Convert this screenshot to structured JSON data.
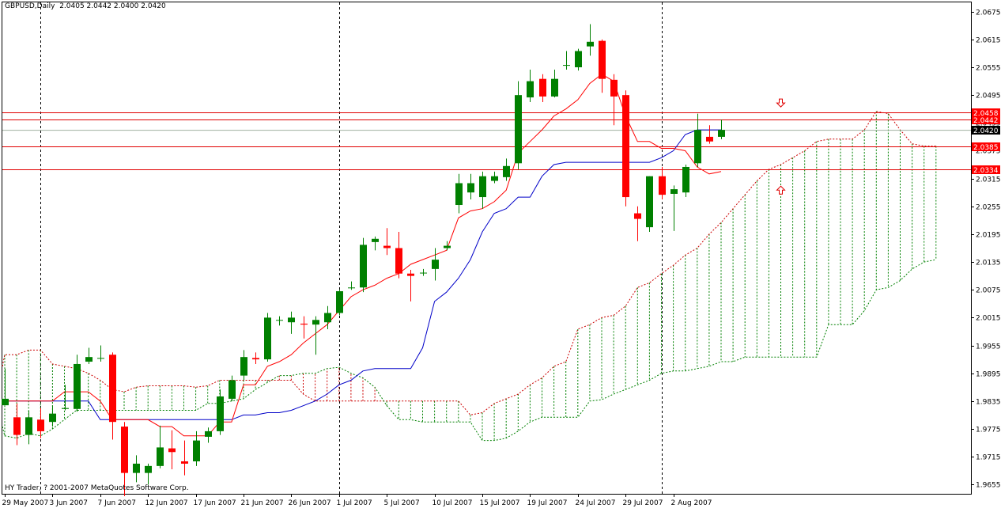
{
  "header": {
    "symbol": "GBPUSD,Daily",
    "ohlc": "2.0405 2.0442 2.0400 2.0420"
  },
  "copyright": "HY Trader, ? 2001-2007 MetaQuotes Software Corp.",
  "chart_data": {
    "type": "candlestick",
    "price_axis": {
      "ylim": [
        1.9635,
        2.0695
      ],
      "ticks": [
        "2.0675",
        "2.0615",
        "2.0555",
        "2.0495",
        "2.0435",
        "2.0375",
        "2.0315",
        "2.0255",
        "2.0195",
        "2.0135",
        "2.0075",
        "2.0015",
        "1.9955",
        "1.9895",
        "1.9835",
        "1.9775",
        "1.9715",
        "1.9655"
      ],
      "side": "right"
    },
    "date_axis_labels": [
      {
        "i": 0,
        "label": "29 May 2007"
      },
      {
        "i": 4,
        "label": "3 Jun 2007"
      },
      {
        "i": 8,
        "label": "7 Jun 2007"
      },
      {
        "i": 12,
        "label": "12 Jun 2007"
      },
      {
        "i": 16,
        "label": "17 Jun 2007"
      },
      {
        "i": 20,
        "label": "21 Jun 2007"
      },
      {
        "i": 24,
        "label": "26 Jun 2007"
      },
      {
        "i": 28,
        "label": "1 Jul 2007"
      },
      {
        "i": 32,
        "label": "5 Jul 2007"
      },
      {
        "i": 36,
        "label": "10 Jul 2007"
      },
      {
        "i": 40,
        "label": "15 Jul 2007"
      },
      {
        "i": 44,
        "label": "19 Jul 2007"
      },
      {
        "i": 48,
        "label": "24 Jul 2007"
      },
      {
        "i": 52,
        "label": "29 Jul 2007"
      },
      {
        "i": 56,
        "label": "2 Aug 2007"
      }
    ],
    "period_separators": [
      3,
      28,
      55
    ],
    "colors": {
      "bull": "#008000",
      "bear": "#ff0000",
      "tenkan": "#ff0000",
      "kijun": "#0000c8",
      "cloud_bull": "#008000",
      "cloud_bear": "#cc0000",
      "hline": "#e00000",
      "grid_sep": "#000000"
    },
    "candles": [
      {
        "o": 1.9826,
        "h": 1.9905,
        "l": 1.983,
        "c": 1.984
      },
      {
        "o": 1.98,
        "h": 1.983,
        "l": 1.974,
        "c": 1.9762
      },
      {
        "o": 1.9762,
        "h": 1.9815,
        "l": 1.9742,
        "c": 1.98
      },
      {
        "o": 1.9795,
        "h": 1.982,
        "l": 1.9755,
        "c": 1.977
      },
      {
        "o": 1.979,
        "h": 1.9825,
        "l": 1.978,
        "c": 1.9808
      },
      {
        "o": 1.9818,
        "h": 1.987,
        "l": 1.9815,
        "c": 1.982
      },
      {
        "o": 1.9818,
        "h": 1.9935,
        "l": 1.9812,
        "c": 1.9915
      },
      {
        "o": 1.992,
        "h": 1.995,
        "l": 1.9915,
        "c": 1.993
      },
      {
        "o": 1.9928,
        "h": 1.9955,
        "l": 1.992,
        "c": 1.9928
      },
      {
        "o": 1.9935,
        "h": 1.994,
        "l": 1.9752,
        "c": 1.979
      },
      {
        "o": 1.978,
        "h": 1.979,
        "l": 1.963,
        "c": 1.968
      },
      {
        "o": 1.968,
        "h": 1.9718,
        "l": 1.966,
        "c": 1.97
      },
      {
        "o": 1.968,
        "h": 1.97,
        "l": 1.9655,
        "c": 1.9695
      },
      {
        "o": 1.9695,
        "h": 1.9782,
        "l": 1.969,
        "c": 1.9735
      },
      {
        "o": 1.9733,
        "h": 1.9772,
        "l": 1.9688,
        "c": 1.9725
      },
      {
        "o": 1.9705,
        "h": 1.975,
        "l": 1.9675,
        "c": 1.97
      },
      {
        "o": 1.9705,
        "h": 1.977,
        "l": 1.9695,
        "c": 1.975
      },
      {
        "o": 1.9758,
        "h": 1.9778,
        "l": 1.9745,
        "c": 1.977
      },
      {
        "o": 1.977,
        "h": 1.986,
        "l": 1.9762,
        "c": 1.9845
      },
      {
        "o": 1.984,
        "h": 1.989,
        "l": 1.9835,
        "c": 1.988
      },
      {
        "o": 1.989,
        "h": 1.9945,
        "l": 1.988,
        "c": 1.993
      },
      {
        "o": 1.9928,
        "h": 1.994,
        "l": 1.9915,
        "c": 1.9925
      },
      {
        "o": 1.9925,
        "h": 2.0025,
        "l": 1.992,
        "c": 2.0015
      },
      {
        "o": 2.001,
        "h": 2.0018,
        "l": 1.9998,
        "c": 2.001
      },
      {
        "o": 2.0005,
        "h": 2.0028,
        "l": 1.998,
        "c": 2.0015
      },
      {
        "o": 2.0002,
        "h": 2.0018,
        "l": 1.997,
        "c": 2.0
      },
      {
        "o": 2.0,
        "h": 2.0018,
        "l": 1.9935,
        "c": 2.001
      },
      {
        "o": 2.0005,
        "h": 2.004,
        "l": 1.999,
        "c": 2.0025
      },
      {
        "o": 2.0025,
        "h": 2.0075,
        "l": 2.002,
        "c": 2.0072
      },
      {
        "o": 2.008,
        "h": 2.0093,
        "l": 2.0075,
        "c": 2.008
      },
      {
        "o": 2.008,
        "h": 2.0187,
        "l": 2.007,
        "c": 2.0172
      },
      {
        "o": 2.0178,
        "h": 2.019,
        "l": 2.016,
        "c": 2.0185
      },
      {
        "o": 2.017,
        "h": 2.0208,
        "l": 2.015,
        "c": 2.0165
      },
      {
        "o": 2.0165,
        "h": 2.02,
        "l": 2.01,
        "c": 2.011
      },
      {
        "o": 2.011,
        "h": 2.0118,
        "l": 2.005,
        "c": 2.0105
      },
      {
        "o": 2.0112,
        "h": 2.012,
        "l": 2.0105,
        "c": 2.0112
      },
      {
        "o": 2.012,
        "h": 2.0165,
        "l": 2.0095,
        "c": 2.014
      },
      {
        "o": 2.0165,
        "h": 2.018,
        "l": 2.016,
        "c": 2.017
      },
      {
        "o": 2.0258,
        "h": 2.0325,
        "l": 2.024,
        "c": 2.0305
      },
      {
        "o": 2.0285,
        "h": 2.0325,
        "l": 2.027,
        "c": 2.0305
      },
      {
        "o": 2.0275,
        "h": 2.033,
        "l": 2.025,
        "c": 2.032
      },
      {
        "o": 2.031,
        "h": 2.033,
        "l": 2.0305,
        "c": 2.032
      },
      {
        "o": 2.0318,
        "h": 2.0358,
        "l": 2.031,
        "c": 2.0342
      },
      {
        "o": 2.0348,
        "h": 2.0525,
        "l": 2.0335,
        "c": 2.0495
      },
      {
        "o": 2.049,
        "h": 2.055,
        "l": 2.048,
        "c": 2.0525
      },
      {
        "o": 2.053,
        "h": 2.054,
        "l": 2.048,
        "c": 2.0492
      },
      {
        "o": 2.0492,
        "h": 2.055,
        "l": 2.049,
        "c": 2.053
      },
      {
        "o": 2.056,
        "h": 2.059,
        "l": 2.055,
        "c": 2.056
      },
      {
        "o": 2.0555,
        "h": 2.0595,
        "l": 2.0548,
        "c": 2.059
      },
      {
        "o": 2.06,
        "h": 2.0648,
        "l": 2.058,
        "c": 2.061
      },
      {
        "o": 2.0612,
        "h": 2.0615,
        "l": 2.05,
        "c": 2.053
      },
      {
        "o": 2.0528,
        "h": 2.054,
        "l": 2.043,
        "c": 2.0492
      },
      {
        "o": 2.0495,
        "h": 2.0505,
        "l": 2.0255,
        "c": 2.0275
      },
      {
        "o": 2.024,
        "h": 2.0255,
        "l": 2.018,
        "c": 2.0228
      },
      {
        "o": 2.021,
        "h": 2.032,
        "l": 2.02,
        "c": 2.032
      },
      {
        "o": 2.032,
        "h": 2.034,
        "l": 2.027,
        "c": 2.028
      },
      {
        "o": 2.0282,
        "h": 2.03,
        "l": 2.0202,
        "c": 2.0292
      },
      {
        "o": 2.0285,
        "h": 2.0345,
        "l": 2.0275,
        "c": 2.034
      },
      {
        "o": 2.0348,
        "h": 2.0455,
        "l": 2.034,
        "c": 2.042
      },
      {
        "o": 2.0405,
        "h": 2.043,
        "l": 2.039,
        "c": 2.0395
      },
      {
        "o": 2.0405,
        "h": 2.0442,
        "l": 2.04,
        "c": 2.042
      }
    ],
    "tenkan": [
      1.9835,
      1.9835,
      1.9835,
      1.9835,
      1.9835,
      1.9855,
      1.9855,
      1.9855,
      1.9835,
      1.9795,
      1.9795,
      1.9795,
      1.9795,
      1.978,
      1.978,
      1.976,
      1.976,
      1.976,
      1.979,
      1.979,
      1.987,
      1.987,
      1.991,
      1.992,
      1.9935,
      1.996,
      1.998,
      2.0,
      2.003,
      2.006,
      2.0075,
      2.0085,
      2.01,
      2.011,
      2.013,
      2.014,
      2.015,
      2.016,
      2.023,
      2.0245,
      2.025,
      2.0265,
      2.029,
      2.037,
      2.0395,
      2.042,
      2.045,
      2.0465,
      2.0485,
      2.052,
      2.054,
      2.0525,
      2.045,
      2.0395,
      2.0395,
      2.038,
      2.038,
      2.0375,
      2.034,
      2.0325,
      2.033
    ],
    "kijun": [
      1.9835,
      1.9835,
      1.9835,
      1.9835,
      1.9835,
      1.9835,
      1.9835,
      1.9835,
      1.9795,
      1.9795,
      1.9795,
      1.9795,
      1.9795,
      1.9795,
      1.9795,
      1.9795,
      1.9795,
      1.9795,
      1.9795,
      1.9795,
      1.9805,
      1.9805,
      1.981,
      1.981,
      1.9815,
      1.9825,
      1.9835,
      1.985,
      1.987,
      1.988,
      1.99,
      1.9905,
      1.9905,
      1.9905,
      1.9905,
      1.995,
      2.005,
      2.007,
      2.01,
      2.014,
      2.02,
      2.024,
      2.025,
      2.0275,
      2.0275,
      2.032,
      2.0345,
      2.035,
      2.035,
      2.035,
      2.035,
      2.035,
      2.035,
      2.035,
      2.035,
      2.036,
      2.0375,
      2.041,
      2.042,
      2.042,
      2.042
    ],
    "span_a": [
      1.99,
      1.99,
      1.991,
      1.9935,
      1.9935,
      1.9945,
      1.9945,
      1.9915,
      1.991,
      1.9905,
      1.9895,
      1.988,
      1.986,
      1.9855,
      1.9865,
      1.9868,
      1.9868,
      1.9868,
      1.9868,
      1.9865,
      1.9868,
      1.988,
      1.988,
      1.988,
      1.988,
      1.988,
      1.988,
      1.988,
      1.985,
      1.9835,
      1.9835,
      1.9835,
      1.9835,
      1.9835,
      1.9835,
      1.9835,
      1.9835,
      1.9835,
      1.9835,
      1.9835,
      1.9835,
      1.9835,
      1.9805,
      1.981,
      1.983,
      1.984,
      1.985,
      1.987,
      1.9885,
      1.991,
      1.992,
      1.999,
      2.0,
      2.0015,
      2.002,
      2.004,
      2.008,
      2.009,
      2.011,
      2.0128,
      2.015,
      2.0165,
      2.0195,
      2.022,
      2.025,
      2.028,
      2.031,
      2.0335,
      2.0345,
      2.036,
      2.0375,
      2.0395,
      2.04,
      2.04,
      2.04,
      2.042,
      2.046,
      2.0455,
      2.042,
      2.039,
      2.0385,
      2.0385
    ],
    "span_b": [
      1.9805,
      1.9805,
      1.978,
      1.976,
      1.9755,
      1.9765,
      1.976,
      1.9775,
      1.9795,
      1.9815,
      1.9815,
      1.9815,
      1.9815,
      1.9815,
      1.9815,
      1.9815,
      1.9815,
      1.9815,
      1.9815,
      1.9815,
      1.983,
      1.983,
      1.9835,
      1.984,
      1.986,
      1.9875,
      1.989,
      1.989,
      1.9895,
      1.9895,
      1.9905,
      1.9908,
      1.9895,
      1.9885,
      1.9865,
      1.9825,
      1.9795,
      1.9795,
      1.979,
      1.979,
      1.979,
      1.979,
      1.979,
      1.975,
      1.975,
      1.9755,
      1.977,
      1.979,
      1.98,
      1.98,
      1.98,
      1.98,
      1.9835,
      1.9838,
      1.985,
      1.986,
      1.987,
      1.988,
      1.9895,
      1.99,
      1.99,
      1.9905,
      1.991,
      1.992,
      1.992,
      1.993,
      1.993,
      1.993,
      1.993,
      1.993,
      1.993,
      1.993,
      2.0,
      2.0,
      2.0,
      2.003,
      2.0075,
      2.008,
      2.0095,
      2.012,
      2.0135,
      2.014,
      2.014,
      2.014,
      2.014,
      2.014,
      2.015,
      2.0155
    ],
    "span_offset": -3,
    "horizontal_lines": [
      {
        "price": "2.0458",
        "value": 2.0458,
        "color": "#e00000",
        "label_bg": "#ff0000"
      },
      {
        "price": "2.0442",
        "value": 2.0442,
        "color": "#e00000",
        "label_bg": "#ff0000"
      },
      {
        "price": "2.0385",
        "value": 2.0385,
        "color": "#e00000",
        "label_bg": "#ff0000"
      },
      {
        "price": "2.0334",
        "value": 2.0334,
        "color": "#e00000",
        "label_bg": "#ff0000"
      }
    ],
    "current_price": {
      "price": "2.0420",
      "value": 2.042,
      "color": "#a0b0a0",
      "label_bg": "#000000"
    },
    "arrows": [
      {
        "dir": "down",
        "i": 65,
        "value": 2.0478
      },
      {
        "dir": "up",
        "i": 65,
        "value": 2.029
      }
    ]
  }
}
